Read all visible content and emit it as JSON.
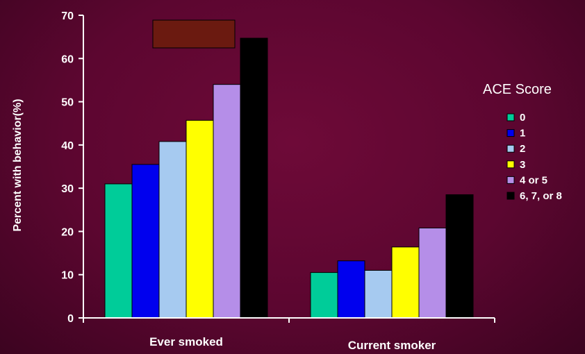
{
  "chart_data": {
    "type": "bar",
    "ylabel": "Percent with behavior(%)",
    "ylim": [
      0,
      70
    ],
    "yticks": [
      0,
      10,
      20,
      30,
      40,
      50,
      60,
      70
    ],
    "categories": [
      "Ever smoked",
      "Current smoker"
    ],
    "legend": {
      "title": "ACE Score",
      "placement": "right"
    },
    "series": [
      {
        "name": "0",
        "color": "#00cc99",
        "values": [
          31,
          10.5
        ]
      },
      {
        "name": "1",
        "color": "#0000ee",
        "values": [
          35.5,
          13.2
        ]
      },
      {
        "name": "2",
        "color": "#a6caf0",
        "values": [
          40.8,
          11
        ]
      },
      {
        "name": "3",
        "color": "#ffff00",
        "values": [
          45.7,
          16.4
        ]
      },
      {
        "name": "4 or 5",
        "color": "#b58ee8",
        "values": [
          54,
          20.8
        ]
      },
      {
        "name": "6, 7, or 8",
        "color": "#000000",
        "values": [
          64.7,
          28.5
        ]
      }
    ],
    "annotation_box_color": "#6b1a10"
  }
}
